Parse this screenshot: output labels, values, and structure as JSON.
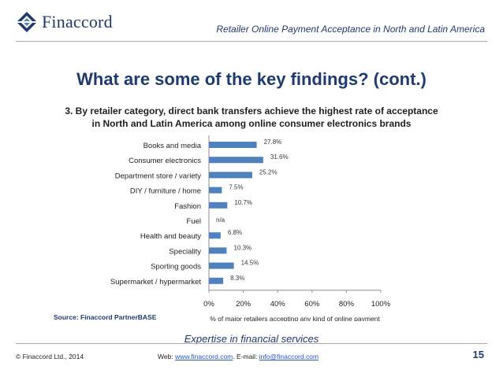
{
  "header": {
    "brand": "Finaccord",
    "report_title": "Retailer Online Payment Acceptance in North and Latin America"
  },
  "slide": {
    "title": "What are some of the key findings? (cont.)",
    "subtitle_line1": "3. By retailer category, direct bank transfers achieve the highest rate of acceptance",
    "subtitle_line2": "in North and Latin America among online consumer electronics brands",
    "source": "Source: Finaccord PartnerBASE",
    "tagline": "Expertise in financial services"
  },
  "footer": {
    "copyright": "© Finaccord Ltd., 2014",
    "web_label": "Web: ",
    "web_link": "www.finaccord.com",
    "email_label": ". E-mail: ",
    "email_link": "info@finaccord.com",
    "page_number": "15"
  },
  "colors": {
    "bar": "#4f81bd",
    "brand": "#1f3a6e",
    "axis": "#8c8c8c"
  },
  "chart_data": {
    "type": "bar",
    "orientation": "horizontal",
    "categories": [
      "Books and media",
      "Consumer electronics",
      "Department store / variety",
      "DIY / furniture / home",
      "Fashion",
      "Fuel",
      "Health and beauty",
      "Speciality",
      "Sporting goods",
      "Supermarket / hypermarket"
    ],
    "values": [
      27.8,
      31.6,
      25.2,
      7.5,
      10.7,
      null,
      6.8,
      10.3,
      14.5,
      8.3
    ],
    "data_labels": [
      "27.8%",
      "31.6%",
      "25.2%",
      "7.5%",
      "10.7%",
      "n/a",
      "6.8%",
      "10.3%",
      "14.5%",
      "8.3%"
    ],
    "xlim": [
      0,
      100
    ],
    "x_ticks": [
      "0%",
      "20%",
      "40%",
      "60%",
      "80%",
      "100%"
    ],
    "xlabel": "% of major retailers accepting any kind of online payment",
    "grid": false,
    "legend": "none"
  }
}
